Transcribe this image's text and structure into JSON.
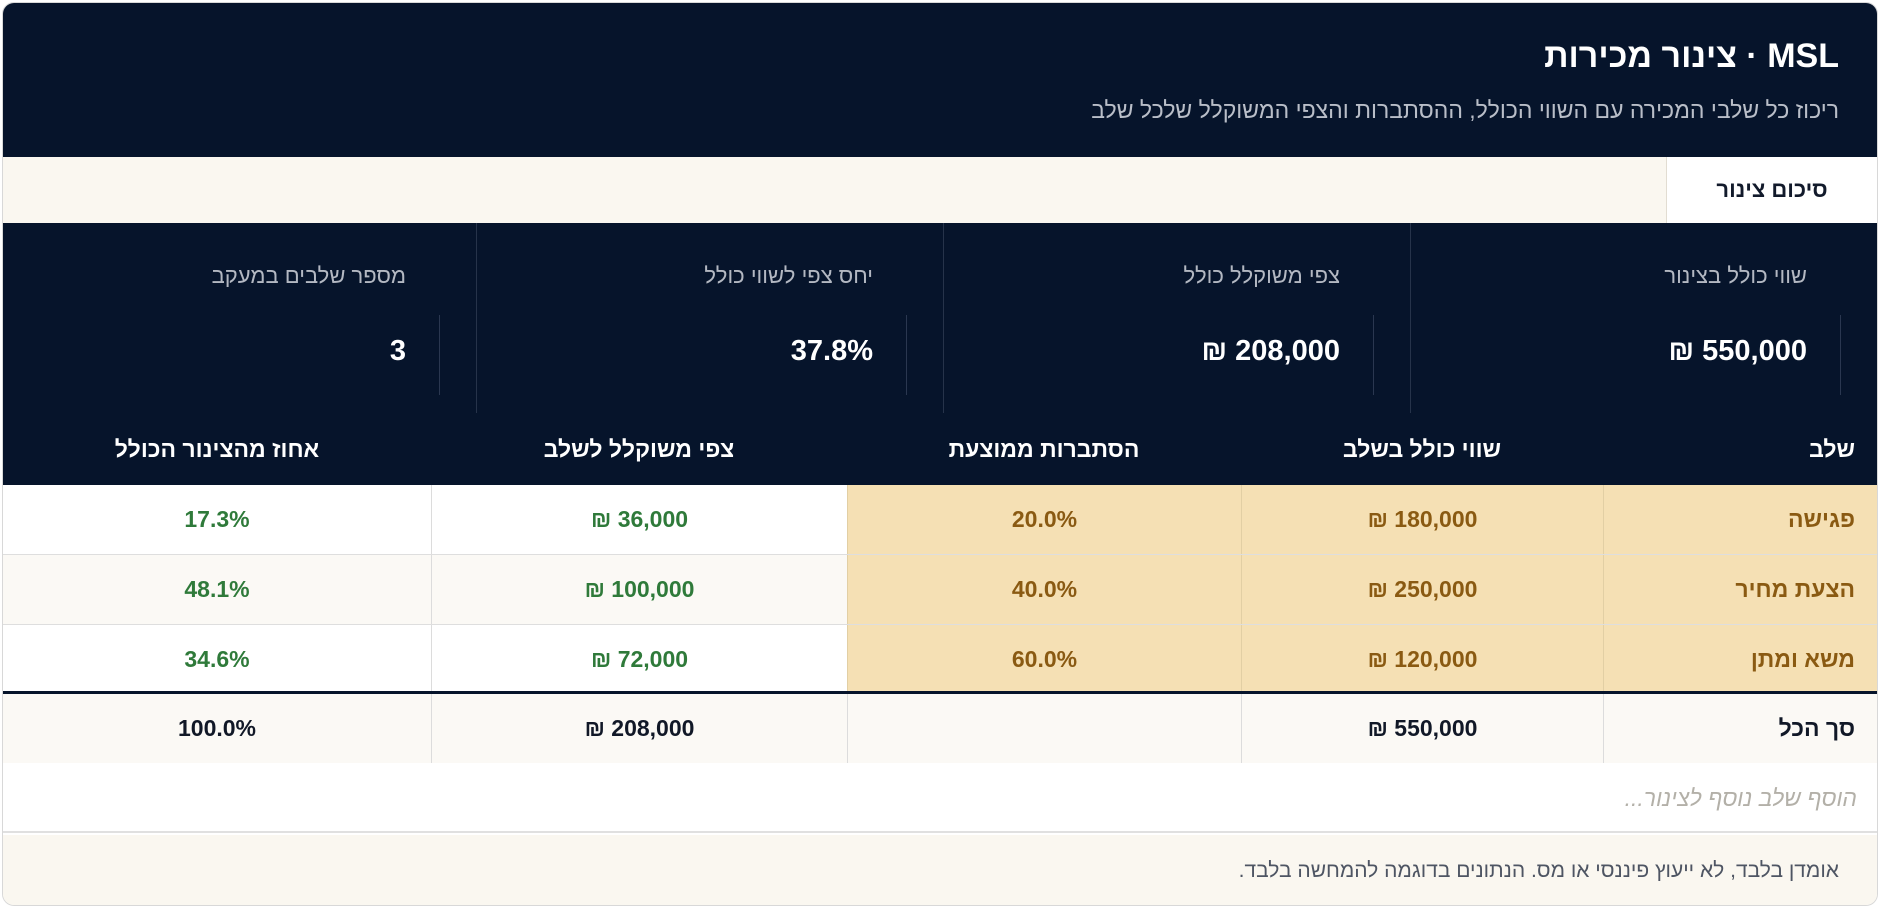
{
  "header": {
    "title": "MSL · צינור מכירות",
    "subtitle": "ריכוז כל שלבי המכירה עם השווי הכולל, ההסתברות והצפי המשוקלל שלכל שלב"
  },
  "tabs": [
    {
      "label": "סיכום צינור",
      "active": true
    }
  ],
  "stats": [
    {
      "label": "שווי כולל בצינור",
      "value": "550,000 ₪"
    },
    {
      "label": "צפי משוקלל כולל",
      "value": "208,000 ₪"
    },
    {
      "label": "יחס צפי לשווי כולל",
      "value": "37.8%"
    },
    {
      "label": "מספר שלבים במעקב",
      "value": "3"
    }
  ],
  "table": {
    "headers": [
      "שלב",
      "שווי כולל בשלב",
      "הסתברות ממוצעת",
      "צפי משוקלל לשלב",
      "אחוז מהצינור הכולל"
    ],
    "rows": [
      [
        "פגישה",
        "180,000 ₪",
        "20.0%",
        "36,000 ₪",
        "17.3%"
      ],
      [
        "הצעת מחיר",
        "250,000 ₪",
        "40.0%",
        "100,000 ₪",
        "48.1%"
      ],
      [
        "משא ומתן",
        "120,000 ₪",
        "60.0%",
        "72,000 ₪",
        "34.6%"
      ]
    ],
    "total": [
      "סך הכל",
      "550,000 ₪",
      "",
      "208,000 ₪",
      "100.0%"
    ]
  },
  "add_row": {
    "placeholder": "הוסף שלב נוסף לצינור..."
  },
  "footer": {
    "text": "אומדן בלבד, לא ייעוץ פיננסי או מס. הנתונים בדוגמה להמחשה בלבד."
  },
  "colors": {
    "navy": "#06142b",
    "highlight": "#f5e0b4",
    "highlight_text": "#8a5a12",
    "green_text": "#2f7a3a",
    "cream": "#faf7f0"
  }
}
